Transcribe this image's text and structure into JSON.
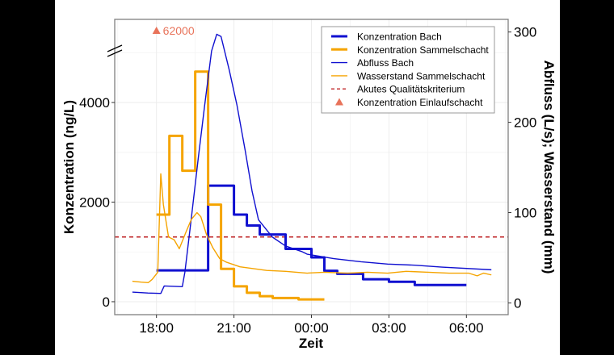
{
  "chart_data": {
    "type": "line",
    "xlabel": "Zeit",
    "ylabel_left": "Konzentration (ng/L)",
    "ylabel_right": "Abfluss (L/s); Wasserstand (mm)",
    "xlim": [
      "16:23",
      "07:37"
    ],
    "x_ticks": [
      "18:00",
      "21:00",
      "00:00",
      "03:00",
      "06:00"
    ],
    "x_minor": [
      "16:30",
      "19:30",
      "22:30",
      "01:30",
      "04:30",
      "07:30"
    ],
    "ylim_left": [
      -260,
      5670
    ],
    "yticks_left": [
      0,
      2000,
      4000
    ],
    "yminor_left": [
      1000,
      3000,
      5000
    ],
    "left_axis_break": true,
    "ylim_right": [
      -13,
      314
    ],
    "yticks_right": [
      0,
      100,
      200,
      300
    ],
    "grid": true,
    "legend_position": "top-right",
    "colors": {
      "bach": "#1010d0",
      "sammelschacht": "#f5a400",
      "kriterium": "#c0282a",
      "einlauf": "#e8735a",
      "grid": "#ececec",
      "border": "#7f7f7f"
    },
    "series": [
      {
        "name": "Konzentration Bach",
        "axis": "left",
        "style": "step-thick",
        "color": "#1010d0",
        "x": [
          "18:00",
          "20:00",
          "21:00",
          "21:30",
          "22:00",
          "23:00",
          "00:00",
          "00:30",
          "01:00",
          "02:00",
          "03:00",
          "04:00",
          "06:00"
        ],
        "y": [
          630,
          2330,
          1750,
          1530,
          1350,
          1060,
          890,
          620,
          560,
          450,
          400,
          335,
          335
        ]
      },
      {
        "name": "Konzentration Sammelschacht",
        "axis": "left",
        "style": "step-thick",
        "color": "#f5a400",
        "x": [
          "18:00",
          "18:30",
          "19:00",
          "19:30",
          "20:00",
          "20:30",
          "21:00",
          "21:30",
          "22:00",
          "22:30",
          "23:30",
          "00:30"
        ],
        "y": [
          1750,
          3330,
          2630,
          4620,
          1950,
          660,
          310,
          180,
          110,
          75,
          45,
          45
        ]
      },
      {
        "name": "Abfluss Bach",
        "axis": "right",
        "style": "line-thin",
        "color": "#1010d0",
        "x": [
          "17:04",
          "17:40",
          "18:10",
          "18:18",
          "19:00",
          "19:06",
          "19:21",
          "19:37",
          "19:52",
          "20:08",
          "20:20",
          "20:30",
          "20:49",
          "21:07",
          "21:26",
          "21:42",
          "21:57",
          "22:29",
          "23:00",
          "23:37",
          "23:50",
          "00:52",
          "01:55",
          "02:57",
          "04:00",
          "05:03",
          "06:58"
        ],
        "y": [
          12,
          11,
          10.5,
          18.8,
          18,
          34,
          94,
          160,
          219,
          279,
          297.5,
          295,
          258,
          219,
          169,
          124,
          92,
          73,
          63,
          57,
          54,
          49,
          45.6,
          43,
          41.8,
          39.7,
          36.7
        ]
      },
      {
        "name": "Wasserstand Sammelschacht",
        "axis": "right",
        "style": "line-thin",
        "color": "#f5a400",
        "x": [
          "17:04",
          "17:25",
          "17:41",
          "17:50",
          "18:03",
          "18:10",
          "18:16",
          "18:28",
          "18:41",
          "18:53",
          "19:09",
          "19:21",
          "19:34",
          "19:43",
          "19:56",
          "20:11",
          "20:27",
          "20:43",
          "21:14",
          "21:45",
          "22:16",
          "23:00",
          "23:50",
          "00:30",
          "01:24",
          "02:10",
          "02:57",
          "03:40",
          "04:31",
          "05:20",
          "06:05",
          "06:25",
          "06:40",
          "06:58"
        ],
        "y": [
          24,
          23,
          22.5,
          26,
          34,
          143,
          109,
          73,
          70,
          60,
          79,
          92.5,
          100,
          95.5,
          76,
          61,
          49,
          45,
          40,
          38,
          36,
          35,
          33,
          34,
          33,
          34,
          33,
          35,
          34,
          33,
          33,
          30,
          33,
          31
        ]
      }
    ],
    "hlines": [
      {
        "name": "Akutes Qualitätskriterium",
        "axis": "left",
        "y": 1300,
        "style": "dashed",
        "color": "#c0282a"
      }
    ],
    "points": [
      {
        "name": "Konzentration Einlaufschacht",
        "axis": "left",
        "x": "18:00",
        "y": 62000,
        "label": "62000",
        "marker": "triangle",
        "color": "#e8735a"
      }
    ],
    "legend": [
      {
        "label": "Konzentration Bach",
        "kind": "thick",
        "color": "#1010d0"
      },
      {
        "label": "Konzentration Sammelschacht",
        "kind": "thick",
        "color": "#f5a400"
      },
      {
        "label": "Abfluss Bach",
        "kind": "thin",
        "color": "#1010d0"
      },
      {
        "label": "Wasserstand Sammelschacht",
        "kind": "thin",
        "color": "#f5a400"
      },
      {
        "label": "Akutes Qualitätskriterium",
        "kind": "dashed",
        "color": "#c0282a"
      },
      {
        "label": "Konzentration Einlaufschacht",
        "kind": "triangle",
        "color": "#e8735a"
      }
    ]
  }
}
